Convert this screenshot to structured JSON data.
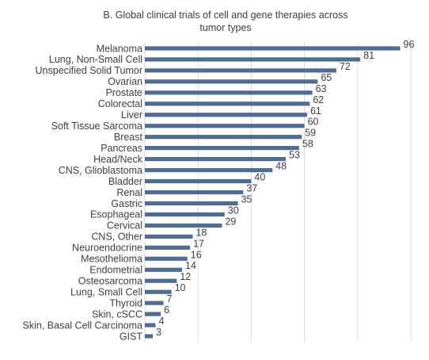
{
  "chart_data": {
    "type": "bar",
    "orientation": "horizontal",
    "title": "B. Global clinical trials of cell and gene therapies across\ntumor types",
    "categories": [
      "Melanoma",
      "Lung, Non-Small Cell",
      "Unspecified Solid Tumor",
      "Ovarian",
      "Prostate",
      "Colorectal",
      "Liver",
      "Soft Tissue Sarcoma",
      "Breast",
      "Pancreas",
      "Head/Neck",
      "CNS, Glioblastoma",
      "Bladder",
      "Renal",
      "Gastric",
      "Esophageal",
      "Cervical",
      "CNS, Other",
      "Neuroendocrine",
      "Mesothelioma",
      "Endometrial",
      "Osteosarcoma",
      "Lung, Small Cell",
      "Thyroid",
      "Skin, cSCC",
      "Skin, Basal Cell Carcinoma",
      "GIST"
    ],
    "values": [
      96,
      81,
      72,
      65,
      63,
      62,
      61,
      60,
      59,
      58,
      53,
      48,
      40,
      37,
      35,
      30,
      29,
      18,
      17,
      16,
      14,
      12,
      10,
      7,
      6,
      4,
      3
    ],
    "xlim": [
      0,
      100
    ],
    "grid": true,
    "legend": "none",
    "bar_color": "#4e6d96",
    "grid_color": "#d9d9d9"
  }
}
